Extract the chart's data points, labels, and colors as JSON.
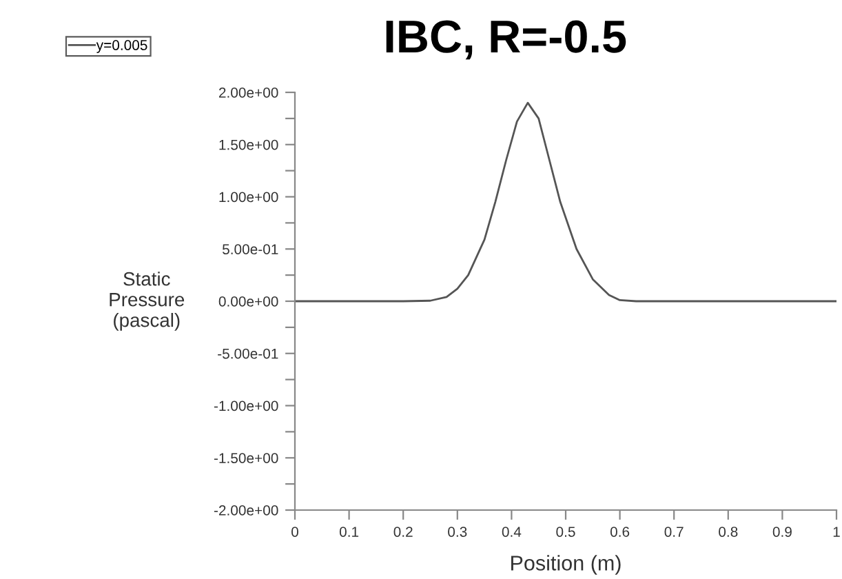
{
  "chart_data": {
    "type": "line",
    "title": "IBC, R=-0.5",
    "xlabel": "Position (m)",
    "ylabel": "Static\nPressure\n(pascal)",
    "series": [
      {
        "name": "y=0.005",
        "color": "#555555",
        "x": [
          0,
          0.2,
          0.25,
          0.28,
          0.3,
          0.32,
          0.35,
          0.37,
          0.39,
          0.41,
          0.43,
          0.45,
          0.47,
          0.49,
          0.5,
          0.52,
          0.55,
          0.58,
          0.6,
          0.63,
          1
        ],
        "values": [
          0,
          0,
          0.005,
          0.04,
          0.12,
          0.25,
          0.59,
          0.95,
          1.35,
          1.72,
          1.9,
          1.75,
          1.35,
          0.95,
          0.8,
          0.5,
          0.21,
          0.06,
          0.01,
          0,
          0
        ]
      }
    ],
    "xlim": [
      0,
      1
    ],
    "ylim": [
      -2,
      2
    ],
    "xticks": [
      0,
      0.1,
      0.2,
      0.3,
      0.4,
      0.5,
      0.6,
      0.7,
      0.8,
      0.9,
      1
    ],
    "yticks": [
      {
        "value": -2,
        "label": "-2.00e+00"
      },
      {
        "value": -1.75,
        "label": null
      },
      {
        "value": -1.5,
        "label": "-1.50e+00"
      },
      {
        "value": -1.25,
        "label": null
      },
      {
        "value": -1,
        "label": "-1.00e+00"
      },
      {
        "value": -0.75,
        "label": null
      },
      {
        "value": -0.5,
        "label": "-5.00e-01"
      },
      {
        "value": -0.25,
        "label": null
      },
      {
        "value": 0,
        "label": "0.00e+00"
      },
      {
        "value": 0.25,
        "label": null
      },
      {
        "value": 0.5,
        "label": "5.00e-01"
      },
      {
        "value": 0.75,
        "label": null
      },
      {
        "value": 1,
        "label": "1.00e+00"
      },
      {
        "value": 1.25,
        "label": null
      },
      {
        "value": 1.5,
        "label": "1.50e+00"
      },
      {
        "value": 1.75,
        "label": null
      },
      {
        "value": 2,
        "label": "2.00e+00"
      }
    ],
    "grid": false,
    "legend": "top left",
    "line_style": "solid",
    "marker": "none"
  }
}
